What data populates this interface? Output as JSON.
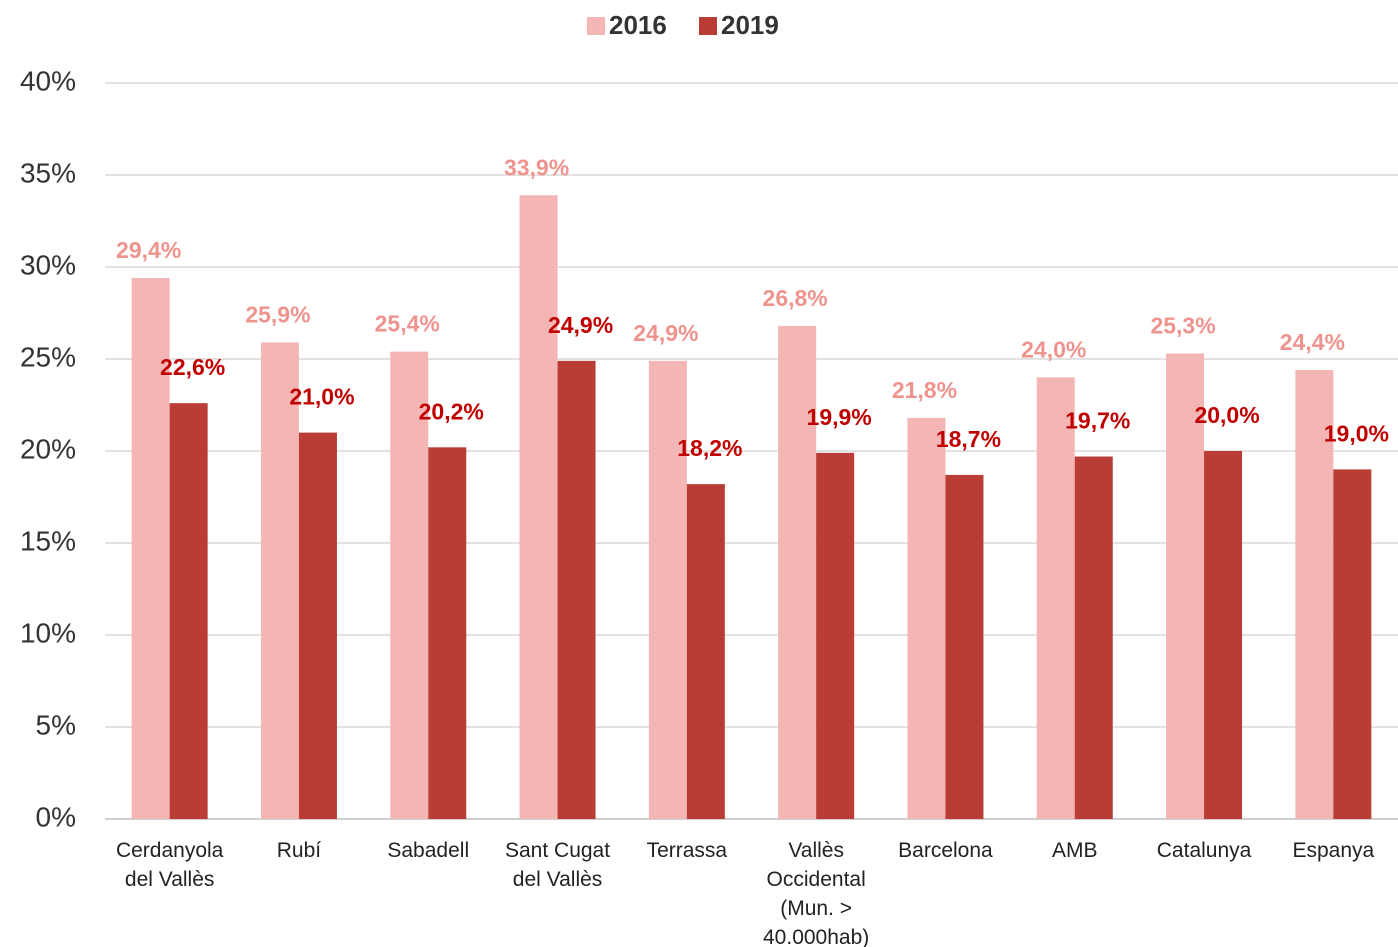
{
  "chart_data": {
    "type": "bar",
    "categories": [
      "Cerdanyola\ndel Vallès",
      "Rubí",
      "Sabadell",
      "Sant Cugat\ndel Vallès",
      "Terrassa",
      "Vallès\nOccidental\n(Mun. >\n40.000hab)",
      "Barcelona",
      "AMB",
      "Catalunya",
      "Espanya"
    ],
    "series": [
      {
        "name": "2016",
        "color": "#f4b6b4",
        "label_color": "#ef938e",
        "values": [
          29.4,
          25.9,
          25.4,
          33.9,
          24.9,
          26.8,
          21.8,
          24.0,
          25.3,
          24.4
        ],
        "value_labels": [
          "29,4%",
          "25,9%",
          "25,4%",
          "33,9%",
          "24,9%",
          "26,8%",
          "21,8%",
          "24,0%",
          "25,3%",
          "24,4%"
        ]
      },
      {
        "name": "2019",
        "color": "#b93c35",
        "label_color": "#c00000",
        "values": [
          22.6,
          21.0,
          20.2,
          24.9,
          18.2,
          19.9,
          18.7,
          19.7,
          20.0,
          19.0
        ],
        "value_labels": [
          "22,6%",
          "21,0%",
          "20,2%",
          "24,9%",
          "18,2%",
          "19,9%",
          "18,7%",
          "19,7%",
          "20,0%",
          "19,0%"
        ]
      }
    ],
    "ylim": [
      0,
      40
    ],
    "yticks": [
      {
        "value": 0,
        "label": "0%"
      },
      {
        "value": 5,
        "label": "5%"
      },
      {
        "value": 10,
        "label": "10%"
      },
      {
        "value": 15,
        "label": "15%"
      },
      {
        "value": 20,
        "label": "20%"
      },
      {
        "value": 25,
        "label": "25%"
      },
      {
        "value": 30,
        "label": "30%"
      },
      {
        "value": 35,
        "label": "35%"
      },
      {
        "value": 40,
        "label": "40%"
      }
    ],
    "grid": true,
    "legend": "top"
  }
}
